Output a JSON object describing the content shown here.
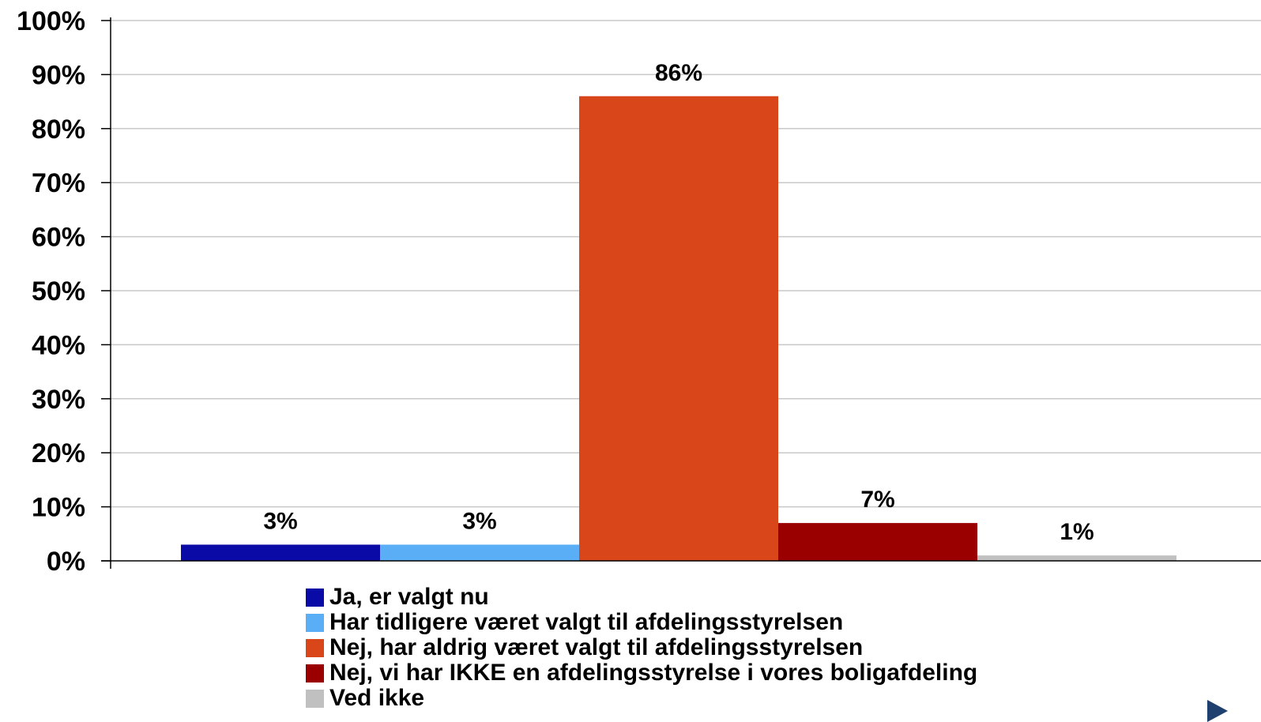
{
  "chart_data": {
    "type": "bar",
    "categories": [
      "Ja, er valgt nu",
      "Har tidligere været valgt til afdelingsstyrelsen",
      "Nej, har aldrig været valgt til afdelingsstyrelsen",
      "Nej, vi har IKKE en afdelingsstyrelse i vores boligafdeling",
      "Ved ikke"
    ],
    "values": [
      3,
      3,
      86,
      7,
      1
    ],
    "data_labels": [
      "3%",
      "3%",
      "86%",
      "7%",
      "1%"
    ],
    "colors": [
      "#0a0aa6",
      "#5aaef5",
      "#d9461a",
      "#9b0000",
      "#c0c0c0"
    ],
    "ylim": [
      0,
      100
    ],
    "yticks": [
      "0%",
      "10%",
      "20%",
      "30%",
      "40%",
      "50%",
      "60%",
      "70%",
      "80%",
      "90%",
      "100%"
    ],
    "grid": true,
    "legend_position": "bottom",
    "title": "",
    "xlabel": "",
    "ylabel": ""
  }
}
